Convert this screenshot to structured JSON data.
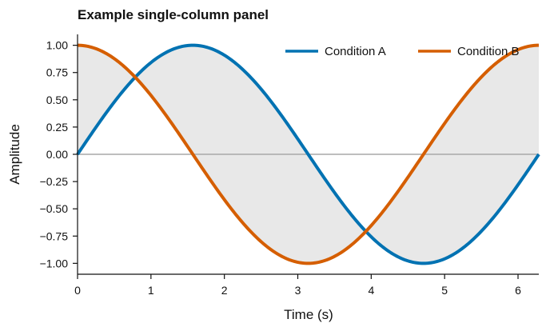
{
  "chart_data": {
    "type": "line",
    "title": "Example single-column panel",
    "xlabel": "Time (s)",
    "ylabel": "Amplitude",
    "xlim": [
      0,
      6.283
    ],
    "ylim": [
      -1.1,
      1.1
    ],
    "x_ticks": [
      0,
      1,
      2,
      3,
      4,
      5,
      6
    ],
    "x_tick_labels": [
      "0",
      "1",
      "2",
      "3",
      "4",
      "5",
      "6"
    ],
    "y_ticks": [
      1.0,
      0.75,
      0.5,
      0.25,
      0.0,
      -0.25,
      -0.5,
      -0.75,
      -1.0
    ],
    "y_tick_labels": [
      "1.00",
      "0.75",
      "0.50",
      "0.25",
      "0.00",
      "−0.25",
      "−0.50",
      "−0.75",
      "−1.00"
    ],
    "zero_line": 0,
    "fill_between": {
      "series": [
        "Condition A",
        "Condition B"
      ],
      "color": "#e8e8e8"
    },
    "grid": false,
    "legend_position": "top-right",
    "x": [
      0,
      0.2513,
      0.5027,
      0.754,
      1.0053,
      1.2566,
      1.508,
      1.7593,
      2.0106,
      2.2619,
      2.5133,
      2.7646,
      3.0159,
      3.2673,
      3.5186,
      3.7699,
      4.0212,
      4.2726,
      4.5239,
      4.7752,
      5.0265,
      5.2779,
      5.5292,
      5.7805,
      6.0319,
      6.2832
    ],
    "series": [
      {
        "name": "Condition A",
        "color": "#0072b2",
        "function": "sin",
        "values": [
          0,
          0.2487,
          0.4818,
          0.6845,
          0.8443,
          0.9511,
          0.998,
          0.9823,
          0.9048,
          0.7705,
          0.5878,
          0.3681,
          0.1253,
          -0.1253,
          -0.3681,
          -0.5878,
          -0.7705,
          -0.9048,
          -0.9823,
          -0.998,
          -0.9511,
          -0.8443,
          -0.6845,
          -0.4818,
          -0.2487,
          0
        ]
      },
      {
        "name": "Condition B",
        "color": "#d55e00",
        "function": "cos",
        "values": [
          1,
          0.9686,
          0.8763,
          0.729,
          0.5358,
          0.309,
          0.0628,
          -0.1874,
          -0.4258,
          -0.6374,
          -0.809,
          -0.9298,
          -0.9921,
          -0.9921,
          -0.9298,
          -0.809,
          -0.6374,
          -0.4258,
          -0.1874,
          0.0628,
          0.309,
          0.5358,
          0.729,
          0.8763,
          0.9686,
          1
        ]
      }
    ]
  }
}
